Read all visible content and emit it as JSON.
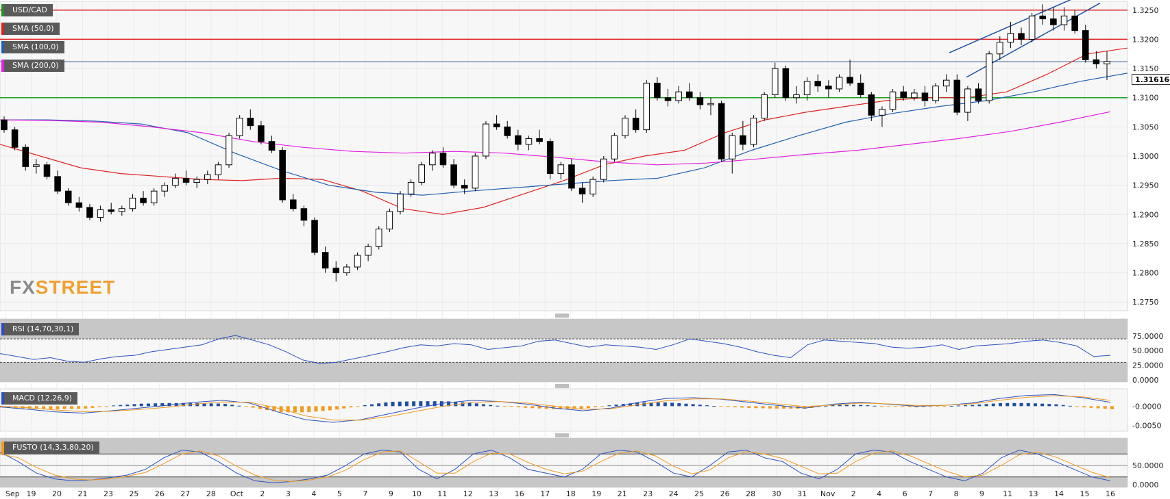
{
  "chart_data": {
    "type": "candlestick",
    "symbol": "USD/CAD",
    "last_price": "1.31616",
    "watermark": "FXSTREET",
    "price_axis": {
      "ticks": [
        "1.3250",
        "1.3200",
        "1.3150",
        "1.3100",
        "1.3050",
        "1.3000",
        "1.2950",
        "1.2900",
        "1.2850",
        "1.2800",
        "1.2750"
      ],
      "range": [
        1.2735,
        1.3265
      ]
    },
    "x_labels": [
      "Sep",
      "19",
      "20",
      "21",
      "23",
      "25",
      "26",
      "27",
      "28",
      "Oct",
      "2",
      "3",
      "4",
      "5",
      "7",
      "9",
      "10",
      "11",
      "12",
      "13",
      "16",
      "17",
      "18",
      "19",
      "21",
      "23",
      "24",
      "25",
      "26",
      "28",
      "30",
      "31",
      "Nov",
      "2",
      "4",
      "6",
      "7",
      "8",
      "9",
      "11",
      "13",
      "14",
      "15",
      "16"
    ],
    "horizontal_levels": [
      {
        "price": 1.325,
        "color": "#e02020"
      },
      {
        "price": 1.32,
        "color": "#e02020"
      },
      {
        "price": 1.31,
        "color": "#1e9e1e"
      },
      {
        "price": 1.31616,
        "color": "#3a5a8c"
      }
    ],
    "indicators_legend": [
      {
        "label": "USD/CAD",
        "color": "#2e8b2e"
      },
      {
        "label": "SMA (50,0)",
        "color": "#e02020"
      },
      {
        "label": "SMA (100,0)",
        "color": "#2060b0"
      },
      {
        "label": "SMA (200,0)",
        "color": "#e020e0"
      }
    ],
    "candles_ohlc": [
      [
        1.3062,
        1.3068,
        1.304,
        1.3045
      ],
      [
        1.3045,
        1.305,
        1.301,
        1.3015
      ],
      [
        1.3015,
        1.302,
        1.2975,
        1.2982
      ],
      [
        1.2982,
        1.2995,
        1.297,
        1.2985
      ],
      [
        1.2985,
        1.299,
        1.296,
        1.2965
      ],
      [
        1.2965,
        1.2975,
        1.2935,
        1.294
      ],
      [
        1.294,
        1.2945,
        1.2915,
        1.292
      ],
      [
        1.292,
        1.293,
        1.2905,
        1.2912
      ],
      [
        1.2912,
        1.2918,
        1.289,
        1.2895
      ],
      [
        1.2895,
        1.2915,
        1.2888,
        1.2908
      ],
      [
        1.2908,
        1.292,
        1.29,
        1.2905
      ],
      [
        1.2905,
        1.2915,
        1.2898,
        1.291
      ],
      [
        1.291,
        1.2935,
        1.2905,
        1.2928
      ],
      [
        1.2928,
        1.294,
        1.2915,
        1.292
      ],
      [
        1.292,
        1.2945,
        1.2915,
        1.294
      ],
      [
        1.294,
        1.2955,
        1.293,
        1.295
      ],
      [
        1.295,
        1.297,
        1.2945,
        1.2962
      ],
      [
        1.2962,
        1.2975,
        1.295,
        1.2955
      ],
      [
        1.2955,
        1.2965,
        1.2945,
        1.296
      ],
      [
        1.296,
        1.2975,
        1.2952,
        1.2968
      ],
      [
        1.2968,
        1.299,
        1.296,
        1.2985
      ],
      [
        1.2985,
        1.304,
        1.298,
        1.3035
      ],
      [
        1.3035,
        1.307,
        1.303,
        1.3065
      ],
      [
        1.3065,
        1.308,
        1.3045,
        1.3052
      ],
      [
        1.3052,
        1.306,
        1.302,
        1.3025
      ],
      [
        1.3025,
        1.3035,
        1.3005,
        1.301
      ],
      [
        1.301,
        1.3015,
        1.292,
        1.2925
      ],
      [
        1.2925,
        1.2935,
        1.2905,
        1.291
      ],
      [
        1.291,
        1.2915,
        1.288,
        1.289
      ],
      [
        1.289,
        1.2895,
        1.283,
        1.2835
      ],
      [
        1.2835,
        1.2845,
        1.28,
        1.2808
      ],
      [
        1.2808,
        1.282,
        1.2785,
        1.28
      ],
      [
        1.28,
        1.2815,
        1.2795,
        1.281
      ],
      [
        1.281,
        1.2835,
        1.2805,
        1.283
      ],
      [
        1.283,
        1.285,
        1.282,
        1.2845
      ],
      [
        1.2845,
        1.288,
        1.284,
        1.2875
      ],
      [
        1.2875,
        1.291,
        1.287,
        1.2905
      ],
      [
        1.2905,
        1.294,
        1.29,
        1.2935
      ],
      [
        1.2935,
        1.296,
        1.293,
        1.2955
      ],
      [
        1.2955,
        1.299,
        1.295,
        1.2985
      ],
      [
        1.2985,
        1.301,
        1.2975,
        1.3005
      ],
      [
        1.3005,
        1.3015,
        1.298,
        1.2985
      ],
      [
        1.2985,
        1.2995,
        1.2945,
        1.295
      ],
      [
        1.295,
        1.296,
        1.2935,
        1.2945
      ],
      [
        1.2945,
        1.3005,
        1.294,
        1.3
      ],
      [
        1.3,
        1.306,
        1.2995,
        1.3055
      ],
      [
        1.3055,
        1.307,
        1.3045,
        1.305
      ],
      [
        1.305,
        1.306,
        1.303,
        1.3035
      ],
      [
        1.3035,
        1.3045,
        1.301,
        1.302
      ],
      [
        1.302,
        1.3035,
        1.301,
        1.303
      ],
      [
        1.303,
        1.3045,
        1.302,
        1.3025
      ],
      [
        1.3025,
        1.303,
        1.296,
        1.297
      ],
      [
        1.297,
        1.299,
        1.296,
        1.2985
      ],
      [
        1.2985,
        1.2995,
        1.294,
        1.2945
      ],
      [
        1.2945,
        1.2955,
        1.292,
        1.2935
      ],
      [
        1.2935,
        1.2965,
        1.293,
        1.296
      ],
      [
        1.296,
        1.3,
        1.2955,
        1.2995
      ],
      [
        1.2995,
        1.304,
        1.299,
        1.3035
      ],
      [
        1.3035,
        1.307,
        1.303,
        1.3065
      ],
      [
        1.3065,
        1.308,
        1.304,
        1.3045
      ],
      [
        1.3045,
        1.313,
        1.304,
        1.3125
      ],
      [
        1.3125,
        1.3135,
        1.3095,
        1.31
      ],
      [
        1.31,
        1.3115,
        1.3085,
        1.3095
      ],
      [
        1.3095,
        1.312,
        1.309,
        1.311
      ],
      [
        1.311,
        1.3125,
        1.3095,
        1.31
      ],
      [
        1.31,
        1.311,
        1.308,
        1.3088
      ],
      [
        1.3088,
        1.31,
        1.307,
        1.309
      ],
      [
        1.309,
        1.3095,
        1.299,
        1.2995
      ],
      [
        1.2995,
        1.304,
        1.297,
        1.3035
      ],
      [
        1.3035,
        1.306,
        1.301,
        1.302
      ],
      [
        1.302,
        1.307,
        1.3015,
        1.3065
      ],
      [
        1.3065,
        1.311,
        1.306,
        1.3105
      ],
      [
        1.3105,
        1.316,
        1.31,
        1.315
      ],
      [
        1.315,
        1.3155,
        1.3095,
        1.31
      ],
      [
        1.31,
        1.312,
        1.309,
        1.3105
      ],
      [
        1.3105,
        1.3135,
        1.3095,
        1.3128
      ],
      [
        1.3128,
        1.314,
        1.311,
        1.312
      ],
      [
        1.312,
        1.313,
        1.31,
        1.3115
      ],
      [
        1.3115,
        1.314,
        1.311,
        1.3135
      ],
      [
        1.3135,
        1.3165,
        1.312,
        1.3125
      ],
      [
        1.3125,
        1.314,
        1.31,
        1.3105
      ],
      [
        1.3105,
        1.311,
        1.306,
        1.307
      ],
      [
        1.307,
        1.3085,
        1.305,
        1.308
      ],
      [
        1.308,
        1.3115,
        1.3075,
        1.311
      ],
      [
        1.311,
        1.312,
        1.3095,
        1.31
      ],
      [
        1.31,
        1.3115,
        1.3095,
        1.3108
      ],
      [
        1.3108,
        1.312,
        1.3085,
        1.3095
      ],
      [
        1.3095,
        1.3125,
        1.309,
        1.312
      ],
      [
        1.312,
        1.314,
        1.311,
        1.313
      ],
      [
        1.313,
        1.314,
        1.307,
        1.3075
      ],
      [
        1.3075,
        1.312,
        1.306,
        1.3115
      ],
      [
        1.3115,
        1.3125,
        1.309,
        1.3095
      ],
      [
        1.3095,
        1.318,
        1.309,
        1.3175
      ],
      [
        1.3175,
        1.3205,
        1.3165,
        1.3195
      ],
      [
        1.3195,
        1.323,
        1.3185,
        1.321
      ],
      [
        1.321,
        1.322,
        1.319,
        1.32
      ],
      [
        1.32,
        1.3245,
        1.3195,
        1.324
      ],
      [
        1.324,
        1.326,
        1.3225,
        1.3235
      ],
      [
        1.3235,
        1.3255,
        1.3215,
        1.3225
      ],
      [
        1.3225,
        1.3255,
        1.3215,
        1.324
      ],
      [
        1.324,
        1.325,
        1.321,
        1.3215
      ],
      [
        1.3215,
        1.3225,
        1.316,
        1.3165
      ],
      [
        1.3165,
        1.318,
        1.315,
        1.3158
      ],
      [
        1.3158,
        1.318,
        1.313,
        1.3162
      ]
    ],
    "sma_50": [
      1.302,
      1.3,
      1.298,
      1.297,
      1.2965,
      1.296,
      1.2958,
      1.2962,
      1.296,
      1.294,
      1.291,
      1.29,
      1.2912,
      1.2935,
      1.2958,
      1.2985,
      1.3,
      1.301,
      1.304,
      1.3062,
      1.3075,
      1.3085,
      1.3095,
      1.31,
      1.31,
      1.311,
      1.314,
      1.3175,
      1.3185
    ],
    "sma_100": [
      1.3062,
      1.3062,
      1.306,
      1.3055,
      1.304,
      1.3005,
      1.2975,
      1.295,
      1.2938,
      1.2933,
      1.294,
      1.2946,
      1.2952,
      1.2958,
      1.2962,
      1.298,
      1.301,
      1.3035,
      1.3058,
      1.3073,
      1.3085,
      1.3095,
      1.311,
      1.3128,
      1.3142
    ],
    "sma_200": [
      1.3062,
      1.3061,
      1.3058,
      1.305,
      1.304,
      1.3025,
      1.3015,
      1.3008,
      1.3005,
      1.3008,
      1.3005,
      1.2998,
      1.299,
      1.2985,
      1.2988,
      1.2995,
      1.3003,
      1.301,
      1.302,
      1.303,
      1.3042,
      1.3058,
      1.3076
    ],
    "rsi": {
      "label": "RSI (14,70,30,1)",
      "ticks": [
        "75.0000",
        "50.0000",
        "25.0000",
        "0.0000"
      ],
      "range": [
        0,
        100
      ],
      "overbought": 70,
      "oversold": 30,
      "values": [
        45,
        40,
        35,
        38,
        32,
        30,
        36,
        40,
        42,
        48,
        52,
        56,
        60,
        70,
        76,
        68,
        60,
        48,
        34,
        28,
        30,
        36,
        42,
        48,
        55,
        60,
        58,
        62,
        60,
        52,
        55,
        58,
        66,
        68,
        62,
        56,
        60,
        58,
        56,
        52,
        60,
        70,
        66,
        62,
        56,
        48,
        42,
        38,
        60,
        68,
        66,
        64,
        62,
        56,
        54,
        56,
        60,
        52,
        58,
        60,
        62,
        66,
        68,
        64,
        58,
        40,
        42
      ]
    },
    "macd": {
      "label": "MACD (12,26,9)",
      "ticks": [
        "-0.0000",
        "-0.0050"
      ],
      "range": [
        -0.0065,
        0.0045
      ],
      "macd_line": [
        -0.0002,
        -0.0008,
        -0.0015,
        -0.0018,
        -0.0012,
        -0.0005,
        0.0002,
        0.001,
        0.0015,
        0.0008,
        -0.0015,
        -0.0035,
        -0.0042,
        -0.0035,
        -0.002,
        -0.0005,
        0.0008,
        0.0015,
        0.0012,
        0.0005,
        -0.0005,
        -0.0012,
        -0.0005,
        0.001,
        0.002,
        0.0022,
        0.0018,
        0.001,
        0.0002,
        -0.0005,
        0.0005,
        0.001,
        0.0005,
        0.0,
        0.0002,
        0.0008,
        0.002,
        0.0028,
        0.003,
        0.0022,
        0.001
      ],
      "signal_line": [
        0.0,
        -0.0004,
        -0.001,
        -0.0014,
        -0.0013,
        -0.0009,
        -0.0003,
        0.0005,
        0.0011,
        0.001,
        -0.0005,
        -0.0025,
        -0.0036,
        -0.0036,
        -0.0027,
        -0.0013,
        0.0,
        0.001,
        0.0012,
        0.0008,
        0.0,
        -0.0008,
        -0.0007,
        0.0004,
        0.0014,
        0.0019,
        0.0019,
        0.0013,
        0.0006,
        -0.0001,
        0.0003,
        0.0008,
        0.0006,
        0.0002,
        0.0002,
        0.0006,
        0.0015,
        0.0023,
        0.0027,
        0.0024,
        0.0015
      ]
    },
    "stochastic": {
      "label": "FUSTO (14,3,3,80,20)",
      "ticks": [
        "50.0000",
        "0.0000"
      ],
      "range": [
        0,
        100
      ],
      "overbought": 80,
      "oversold": 20,
      "k": [
        85,
        60,
        30,
        15,
        10,
        12,
        18,
        25,
        40,
        70,
        90,
        85,
        60,
        30,
        10,
        5,
        8,
        15,
        25,
        50,
        80,
        90,
        85,
        40,
        15,
        40,
        80,
        90,
        70,
        40,
        30,
        20,
        40,
        80,
        90,
        85,
        60,
        30,
        20,
        50,
        85,
        90,
        70,
        60,
        30,
        15,
        40,
        80,
        90,
        85,
        60,
        40,
        20,
        10,
        30,
        70,
        90,
        80,
        60,
        40,
        20,
        10
      ],
      "d": [
        80,
        70,
        45,
        25,
        15,
        12,
        15,
        22,
        32,
        55,
        80,
        88,
        75,
        48,
        25,
        12,
        8,
        12,
        20,
        38,
        65,
        85,
        88,
        60,
        30,
        30,
        60,
        82,
        80,
        58,
        40,
        28,
        35,
        60,
        82,
        88,
        75,
        48,
        28,
        38,
        70,
        86,
        80,
        68,
        48,
        28,
        30,
        60,
        82,
        88,
        75,
        55,
        35,
        20,
        25,
        50,
        78,
        85,
        72,
        52,
        32,
        18
      ]
    }
  }
}
